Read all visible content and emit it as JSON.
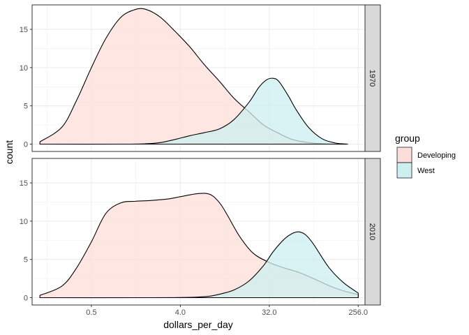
{
  "chart_data": {
    "type": "area",
    "subtype": "stacked density (count) by facet",
    "xlabel": "dollars_per_day",
    "ylabel": "count",
    "x_scale": "log2",
    "xlim": [
      0.125,
      300
    ],
    "ylim": [
      0,
      18.2
    ],
    "x_ticks": [
      {
        "value": 0.5,
        "label": "0.5"
      },
      {
        "value": 4.0,
        "label": "4.0"
      },
      {
        "value": 32.0,
        "label": "32.0"
      },
      {
        "value": 256.0,
        "label": "256.0"
      }
    ],
    "y_ticks": [
      {
        "value": 0,
        "label": "0"
      },
      {
        "value": 5,
        "label": "5"
      },
      {
        "value": 10,
        "label": "10"
      },
      {
        "value": 15,
        "label": "15"
      }
    ],
    "legend": {
      "title": "group",
      "position": "right",
      "entries": [
        {
          "name": "Developing",
          "color": "#F8766D",
          "fill": "#FDDDDA"
        },
        {
          "name": "West",
          "color": "#00BFC4",
          "fill": "#CCEFF0"
        }
      ]
    },
    "facets": [
      {
        "label": "1970",
        "series": [
          {
            "name": "Developing",
            "x": [
              0.15,
              0.25,
              0.35,
              0.5,
              0.7,
              1.0,
              1.4,
              1.8,
              2.5,
              3.5,
              5,
              7,
              10,
              14,
              20,
              28,
              40,
              55,
              80,
              110,
              150,
              200
            ],
            "y": [
              0.3,
              2.2,
              5.6,
              10.0,
              13.8,
              16.6,
              17.6,
              17.6,
              16.6,
              14.8,
              12.7,
              10.4,
              8.2,
              6.0,
              4.2,
              2.5,
              1.4,
              0.6,
              0.2,
              0.05,
              0.0,
              0.0
            ]
          },
          {
            "name": "West",
            "x": [
              0.15,
              1.0,
              1.8,
              2.5,
              3.5,
              5,
              7,
              10,
              14,
              20,
              25,
              30,
              35,
              40,
              50,
              60,
              80,
              110,
              150,
              200
            ],
            "y": [
              0.0,
              0.0,
              0.05,
              0.2,
              0.6,
              1.1,
              1.5,
              2.0,
              3.2,
              5.5,
              7.4,
              8.4,
              8.6,
              8.2,
              6.3,
              4.5,
              2.2,
              0.7,
              0.15,
              0.0
            ]
          }
        ]
      },
      {
        "label": "2010",
        "series": [
          {
            "name": "Developing",
            "x": [
              0.15,
              0.25,
              0.35,
              0.5,
              0.7,
              1.0,
              1.4,
              2.0,
              3.0,
              4.0,
              6.0,
              8.0,
              10.0,
              12.0,
              16.0,
              22.0,
              32.0,
              45.0,
              64.0,
              90.0,
              128.0,
              180.0,
              256.0
            ],
            "y": [
              0.3,
              1.5,
              3.8,
              7.3,
              11.0,
              12.4,
              12.6,
              12.7,
              12.9,
              13.2,
              13.6,
              13.5,
              12.4,
              10.8,
              8.0,
              5.8,
              4.6,
              3.9,
              3.3,
              2.5,
              1.6,
              0.9,
              0.4
            ]
          },
          {
            "name": "West",
            "x": [
              0.15,
              2.0,
              4.0,
              6.0,
              8.0,
              10.0,
              14.0,
              20.0,
              28.0,
              35.0,
              45.0,
              55.0,
              64.0,
              75.0,
              90.0,
              128.0,
              180.0,
              256.0
            ],
            "y": [
              0.0,
              0.0,
              0.02,
              0.08,
              0.2,
              0.45,
              1.0,
              2.2,
              4.2,
              6.0,
              7.6,
              8.4,
              8.6,
              8.2,
              7.0,
              4.0,
              2.0,
              0.6
            ]
          }
        ]
      }
    ]
  }
}
